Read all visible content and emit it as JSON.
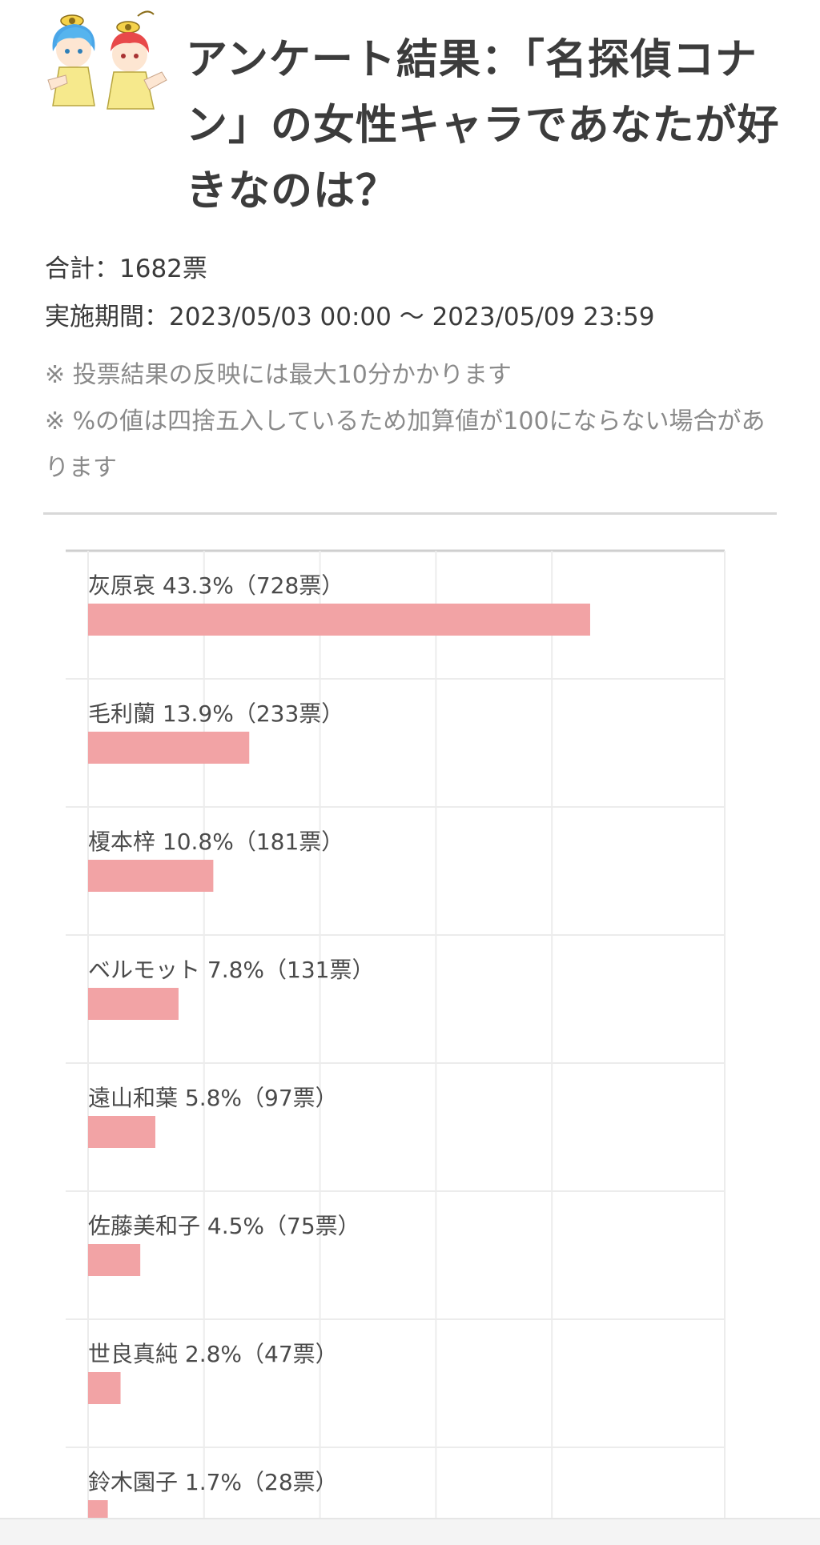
{
  "page": {
    "title": "アンケート結果：「名探偵コナン」の女性キャラであなたが好きなのは？",
    "total": "合計：1682票",
    "period": "実施期間：2023/05/03 00:00 〜 2023/05/09 23:59",
    "notes": [
      "※ 投票結果の反映には最大10分かかります",
      "※ %の値は四捨五入しているため加算値が100にならない場合があります"
    ]
  },
  "colors": {
    "bar": "#f2a3a5",
    "grid": "#ececec",
    "axis": "#cfcfcf"
  },
  "icons": {
    "mascot": "two-cartoon-kids-mascot"
  },
  "chart_data": {
    "type": "bar",
    "orientation": "horizontal",
    "categories": [
      "灰原哀",
      "毛利蘭",
      "榎本梓",
      "ベルモット",
      "遠山和葉",
      "佐藤美和子",
      "世良真純",
      "鈴木園子"
    ],
    "values": [
      43.3,
      13.9,
      10.8,
      7.8,
      5.8,
      4.5,
      2.8,
      1.7
    ],
    "votes": [
      728,
      233,
      181,
      131,
      97,
      75,
      47,
      28
    ],
    "labels": [
      "灰原哀 43.3%（728票）",
      "毛利蘭 13.9%（233票）",
      "榎本梓 10.8%（181票）",
      "ベルモット 7.8%（131票）",
      "遠山和葉 5.8%（97票）",
      "佐藤美和子 4.5%（75票）",
      "世良真純 2.8%（47票）",
      "鈴木園子 1.7%（28票）"
    ],
    "xlim": [
      0,
      50
    ],
    "grid": true,
    "unit": "%"
  }
}
